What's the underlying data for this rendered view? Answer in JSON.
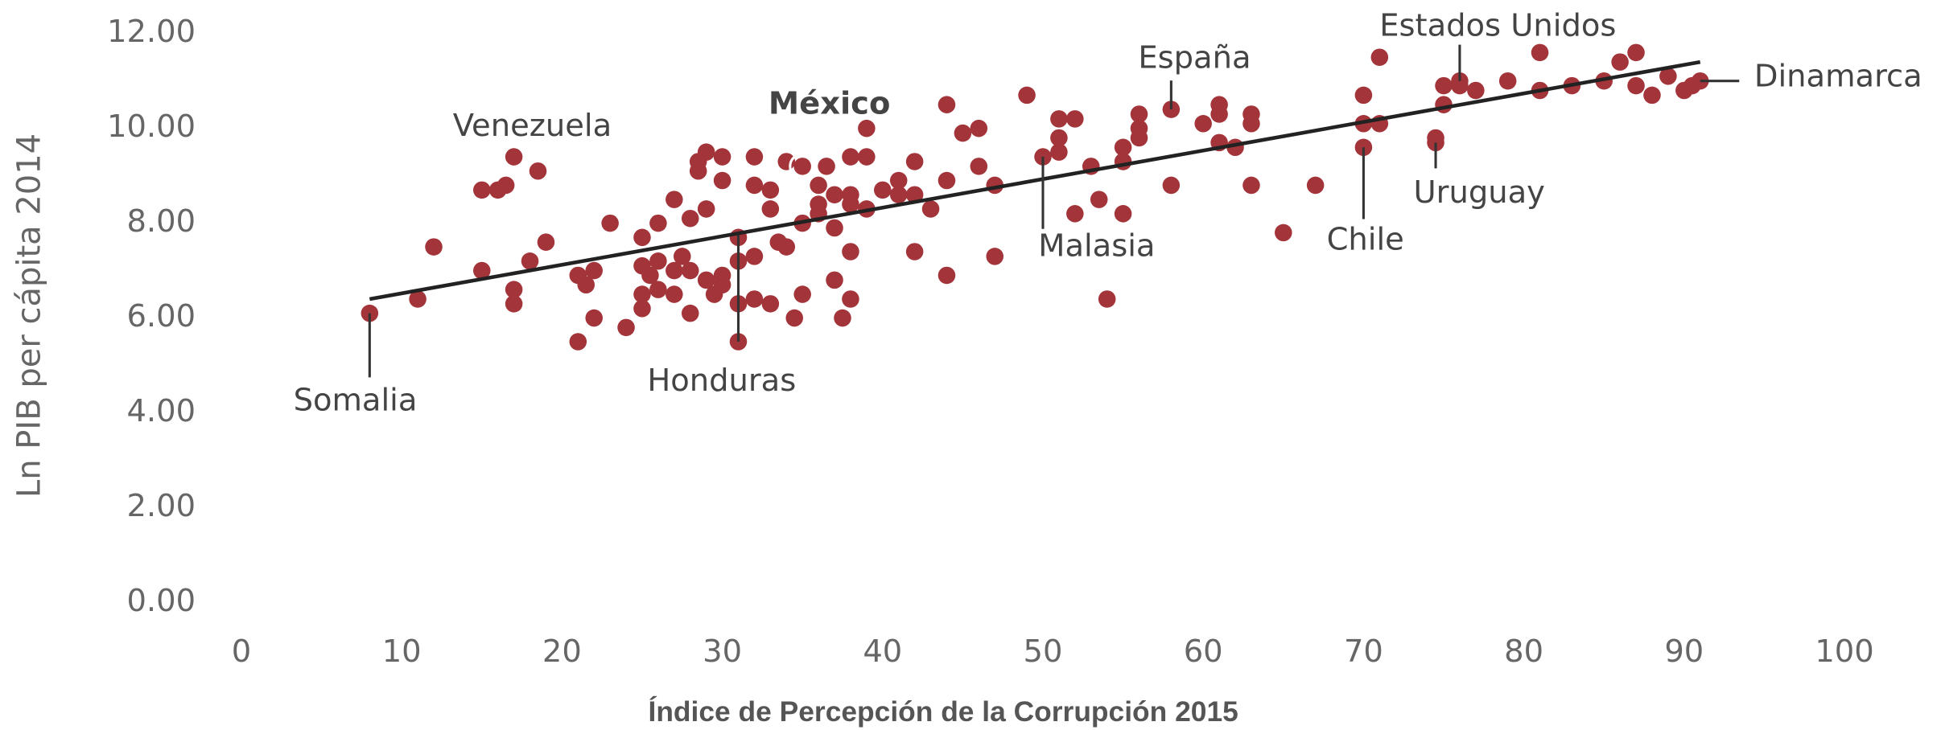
{
  "chart_data": {
    "type": "scatter",
    "x_label": "Índice de Percepción de la Corrupción 2015",
    "y_label": "Ln PIB per cápita 2014",
    "color": "#a3343a",
    "xlim": [
      0,
      100
    ],
    "ylim": [
      0,
      12
    ],
    "xticks": [
      0,
      10,
      20,
      30,
      40,
      50,
      60,
      70,
      80,
      90,
      100
    ],
    "yticks": [
      {
        "value": 0,
        "label": "0.00"
      },
      {
        "value": 2,
        "label": "2.00"
      },
      {
        "value": 4,
        "label": "4.00"
      },
      {
        "value": 6,
        "label": "6.00"
      },
      {
        "value": 8,
        "label": "8.00"
      },
      {
        "value": 10,
        "label": "10.00"
      },
      {
        "value": 12,
        "label": "12.00"
      }
    ],
    "x": [
      8,
      11,
      12,
      15,
      15,
      16,
      16.5,
      17,
      17,
      17,
      18,
      18.5,
      19,
      21,
      21,
      21.5,
      22,
      22,
      23,
      24,
      25,
      25,
      25,
      25,
      25.5,
      26,
      26,
      26,
      27,
      27,
      27,
      27.5,
      28,
      28,
      28,
      28.5,
      28.5,
      29,
      29,
      29,
      29.5,
      30,
      30,
      30,
      30,
      31,
      31,
      31,
      31,
      32,
      32,
      32,
      32,
      33,
      33,
      33,
      33.5,
      34,
      34,
      34.5,
      35,
      35,
      35,
      36,
      36,
      36,
      36.5,
      37,
      37,
      37,
      37.5,
      38,
      38,
      38,
      38,
      38,
      39,
      39,
      39,
      40,
      41,
      41,
      42,
      42,
      42,
      43,
      44,
      44,
      44,
      45,
      46,
      46,
      47,
      47,
      49,
      50,
      51,
      51,
      51,
      52,
      52,
      53,
      53.5,
      54,
      55,
      55,
      55,
      56,
      56,
      56,
      58,
      58,
      60,
      61,
      61,
      61,
      62,
      63,
      63,
      63,
      65,
      67,
      70,
      70,
      70,
      71,
      71,
      74.5,
      74.5,
      75,
      75,
      76,
      76,
      77,
      79,
      81,
      81,
      83,
      85,
      86,
      87,
      87,
      88,
      89,
      90,
      91,
      90.5
    ],
    "values": [
      6.1,
      6.4,
      7.5,
      7.0,
      8.7,
      8.7,
      8.8,
      9.4,
      6.6,
      6.3,
      7.2,
      9.1,
      7.6,
      5.5,
      6.9,
      6.7,
      7.0,
      6.0,
      8.0,
      5.8,
      7.7,
      7.1,
      6.5,
      6.2,
      6.9,
      8.0,
      7.2,
      6.6,
      8.5,
      7.0,
      6.5,
      7.3,
      8.1,
      7.0,
      6.1,
      9.3,
      9.1,
      9.5,
      8.3,
      6.8,
      6.5,
      9.4,
      8.9,
      6.7,
      6.9,
      7.2,
      7.7,
      6.3,
      5.5,
      9.4,
      8.8,
      7.3,
      6.4,
      8.7,
      8.3,
      6.3,
      7.6,
      9.3,
      7.5,
      6.0,
      9.2,
      8.0,
      6.5,
      8.8,
      8.4,
      8.2,
      9.2,
      8.6,
      7.9,
      6.8,
      6.0,
      9.4,
      8.6,
      8.4,
      7.4,
      6.4,
      10.0,
      9.4,
      8.3,
      8.7,
      8.6,
      8.9,
      9.3,
      8.6,
      7.4,
      8.3,
      10.5,
      8.9,
      6.9,
      9.9,
      10.0,
      9.2,
      8.8,
      7.3,
      10.7,
      9.4,
      10.2,
      9.8,
      9.5,
      10.2,
      8.2,
      9.2,
      8.5,
      6.4,
      8.2,
      9.3,
      9.6,
      10.3,
      10.0,
      9.8,
      10.4,
      8.8,
      10.1,
      10.5,
      10.3,
      9.7,
      9.6,
      10.3,
      10.1,
      8.8,
      7.8,
      8.8,
      9.6,
      10.7,
      10.1,
      10.1,
      11.5,
      9.7,
      9.8,
      10.9,
      10.5,
      10.9,
      11.0,
      10.8,
      11.0,
      11.6,
      10.8,
      10.9,
      11.0,
      11.4,
      11.6,
      10.9,
      10.7,
      11.1,
      10.8,
      11.0,
      10.9
    ],
    "trendline": {
      "x": [
        8,
        91
      ],
      "y": [
        6.4,
        11.4
      ],
      "color": "#222222"
    },
    "annotations": [
      {
        "text": "Somalia",
        "x": 8,
        "y": 6.1
      },
      {
        "text": "Venezuela",
        "x": 17,
        "y": 9.4
      },
      {
        "text": "México",
        "x": 35,
        "y": 9.2,
        "bold": true
      },
      {
        "text": "Honduras",
        "x": 31,
        "y": 5.5
      },
      {
        "text": "Malasia",
        "x": 50,
        "y": 9.4
      },
      {
        "text": "España",
        "x": 58,
        "y": 10.4
      },
      {
        "text": "Estados Unidos",
        "x": 76,
        "y": 11.0
      },
      {
        "text": "Chile",
        "x": 70,
        "y": 9.6
      },
      {
        "text": "Uruguay",
        "x": 74.5,
        "y": 9.7
      },
      {
        "text": "Dinamarca",
        "x": 91,
        "y": 11.0
      }
    ]
  }
}
